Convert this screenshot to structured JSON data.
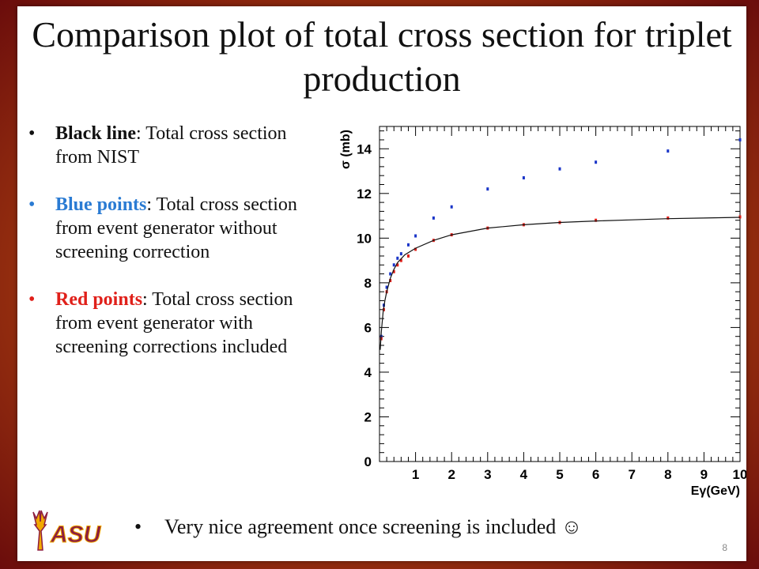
{
  "slide": {
    "title": "Comparison plot of total cross section for triplet production",
    "bullets": [
      {
        "lead": "Black line",
        "rest": ": Total cross section from NIST"
      },
      {
        "lead": "Blue points",
        "rest": ": Total cross section from event generator without screening correction"
      },
      {
        "lead": "Red points",
        "rest": ": Total cross section from event generator with screening corrections included"
      }
    ],
    "bottom_text": "Very nice agreement once screening is included ☺",
    "page_number": "8",
    "logo_text": "ASU",
    "colors": {
      "blue": "#2a7bd3",
      "red": "#e0201a",
      "maroon": "#8c1d40",
      "gold": "#f2a900"
    }
  },
  "chart_data": {
    "type": "scatter",
    "xlabel": "Eγ(GeV)",
    "ylabel": "σ (mb)",
    "xlim": [
      0,
      10
    ],
    "ylim": [
      0,
      15
    ],
    "xticks": [
      1,
      2,
      3,
      4,
      5,
      6,
      7,
      8,
      9,
      10
    ],
    "yticks": [
      0,
      2,
      4,
      6,
      8,
      10,
      12,
      14
    ],
    "grid": false,
    "series": [
      {
        "color": "#1a35c8",
        "x": [
          0.05,
          0.12,
          0.2,
          0.3,
          0.4,
          0.5,
          0.6,
          0.8,
          1.0,
          1.5,
          2.0,
          3.0,
          4.0,
          5.0,
          6.0,
          8.0,
          10.0
        ],
        "y": [
          5.6,
          7.0,
          7.8,
          8.4,
          8.8,
          9.1,
          9.3,
          9.7,
          10.1,
          10.9,
          11.4,
          12.2,
          12.7,
          13.1,
          13.4,
          13.9,
          14.4
        ]
      },
      {
        "color": "#e0201a",
        "x": [
          0.05,
          0.12,
          0.2,
          0.3,
          0.4,
          0.5,
          0.6,
          0.8,
          1.0,
          1.5,
          2.0,
          3.0,
          4.0,
          5.0,
          6.0,
          8.0,
          10.0
        ],
        "y": [
          5.5,
          6.8,
          7.6,
          8.1,
          8.5,
          8.8,
          9.0,
          9.2,
          9.5,
          9.9,
          10.15,
          10.45,
          10.6,
          10.7,
          10.8,
          10.9,
          10.95
        ]
      },
      {
        "color": "#111111",
        "line": true,
        "x": [
          0.02,
          0.05,
          0.1,
          0.15,
          0.2,
          0.3,
          0.4,
          0.5,
          0.7,
          1.0,
          1.5,
          2.0,
          3.0,
          4.0,
          5.0,
          6.0,
          7.0,
          8.0,
          9.0,
          10.0
        ],
        "y": [
          5.0,
          5.8,
          6.7,
          7.2,
          7.6,
          8.2,
          8.6,
          8.9,
          9.25,
          9.55,
          9.9,
          10.15,
          10.45,
          10.6,
          10.7,
          10.77,
          10.82,
          10.87,
          10.9,
          10.93
        ]
      }
    ]
  }
}
